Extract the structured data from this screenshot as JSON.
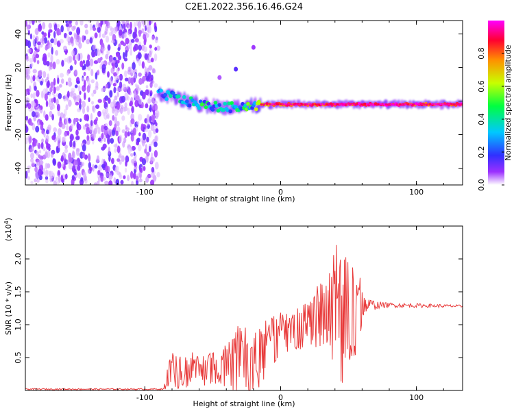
{
  "page_title": "C2E1.2022.356.16.46.G24",
  "chart_data": [
    {
      "type": "heatmap",
      "title": "C2E1.2022.356.16.46.G24",
      "xlabel": "Height of straight line (km)",
      "ylabel": "Frequency (Hz)",
      "xlim": [
        -188,
        134
      ],
      "ylim": [
        -50,
        48
      ],
      "xticks": [
        -100,
        0,
        100
      ],
      "xtick_labels": [
        "-100",
        "0",
        "100"
      ],
      "yticks": [
        -40,
        -20,
        0,
        20,
        40
      ],
      "ytick_labels": [
        "-40",
        "-20",
        "0",
        "20",
        "40"
      ],
      "grid": false,
      "colorbar": {
        "label": "Normalized spectral amplitude",
        "range": [
          0,
          1
        ],
        "ticks": [
          0.0,
          0.2,
          0.4,
          0.6,
          0.8
        ],
        "tick_labels": [
          "0.0",
          "0.2",
          "0.4",
          "0.6",
          "0.8"
        ],
        "colors": [
          "#ffffff",
          "#9b30ff",
          "#3030ff",
          "#00c8ff",
          "#00ff40",
          "#c8ff00",
          "#ff9000",
          "#ff0030",
          "#ff00ff"
        ]
      },
      "noise_region": {
        "x": [
          -188,
          -90
        ],
        "y": [
          -50,
          48
        ],
        "amplitude": 0.2
      },
      "trace": [
        {
          "x": -90,
          "freq": 4,
          "amp": 0.35
        },
        {
          "x": -80,
          "freq": 3,
          "amp": 0.4
        },
        {
          "x": -70,
          "freq": 0,
          "amp": 0.45
        },
        {
          "x": -60,
          "freq": -2,
          "amp": 0.45
        },
        {
          "x": -50,
          "freq": -3,
          "amp": 0.45
        },
        {
          "x": -40,
          "freq": -4,
          "amp": 0.5
        },
        {
          "x": -30,
          "freq": -3,
          "amp": 0.5
        },
        {
          "x": -20,
          "freq": -3,
          "amp": 0.5
        },
        {
          "x": -15,
          "freq": -2,
          "amp": 0.8
        },
        {
          "x": 0,
          "freq": -2,
          "amp": 0.85
        },
        {
          "x": 20,
          "freq": -2,
          "amp": 0.85
        },
        {
          "x": 40,
          "freq": -2,
          "amp": 0.9
        },
        {
          "x": 60,
          "freq": -2,
          "amp": 0.95
        },
        {
          "x": 80,
          "freq": -2,
          "amp": 0.95
        },
        {
          "x": 100,
          "freq": -2,
          "amp": 0.95
        },
        {
          "x": 120,
          "freq": -2,
          "amp": 0.9
        },
        {
          "x": 134,
          "freq": -2,
          "amp": 0.9
        }
      ],
      "spurious": [
        {
          "x": -33,
          "freq": 19,
          "amp": 0.2
        },
        {
          "x": -20,
          "freq": 32,
          "amp": 0.12
        },
        {
          "x": -45,
          "freq": 14,
          "amp": 0.1
        }
      ]
    },
    {
      "type": "line",
      "xlabel": "Height of straight line (km)",
      "ylabel": "SNR (10 * v/v)",
      "scale_label": "(x10",
      "scale_exponent": "4",
      "scale_suffix": ")",
      "xlim": [
        -188,
        134
      ],
      "ylim": [
        0,
        2.5
      ],
      "xticks": [
        -100,
        0,
        100
      ],
      "xtick_labels": [
        "-100",
        "0",
        "100"
      ],
      "yticks": [
        0.5,
        1.0,
        1.5,
        2.0
      ],
      "ytick_labels": [
        "0.5",
        "1.0",
        "1.5",
        "2.0"
      ],
      "grid": false,
      "series": [
        {
          "color": "#e83a3a",
          "envelope": [
            {
              "x": -188,
              "base": 0.02,
              "amp": 0.01
            },
            {
              "x": -86,
              "base": 0.02,
              "amp": 0.01
            },
            {
              "x": -82,
              "base": 0.25,
              "amp": 0.25
            },
            {
              "x": -60,
              "base": 0.3,
              "amp": 0.22
            },
            {
              "x": -40,
              "base": 0.35,
              "amp": 0.3
            },
            {
              "x": -25,
              "base": 0.45,
              "amp": 0.55
            },
            {
              "x": -15,
              "base": 0.5,
              "amp": 0.45
            },
            {
              "x": -5,
              "base": 0.7,
              "amp": 0.35
            },
            {
              "x": 5,
              "base": 0.85,
              "amp": 0.3
            },
            {
              "x": 20,
              "base": 1.0,
              "amp": 0.35
            },
            {
              "x": 35,
              "base": 1.1,
              "amp": 0.55
            },
            {
              "x": 45,
              "base": 1.1,
              "amp": 1.1
            },
            {
              "x": 55,
              "base": 1.15,
              "amp": 0.65
            },
            {
              "x": 62,
              "base": 1.3,
              "amp": 0.12
            },
            {
              "x": 75,
              "base": 1.3,
              "amp": 0.04
            },
            {
              "x": 134,
              "base": 1.28,
              "amp": 0.02
            }
          ]
        }
      ]
    }
  ]
}
